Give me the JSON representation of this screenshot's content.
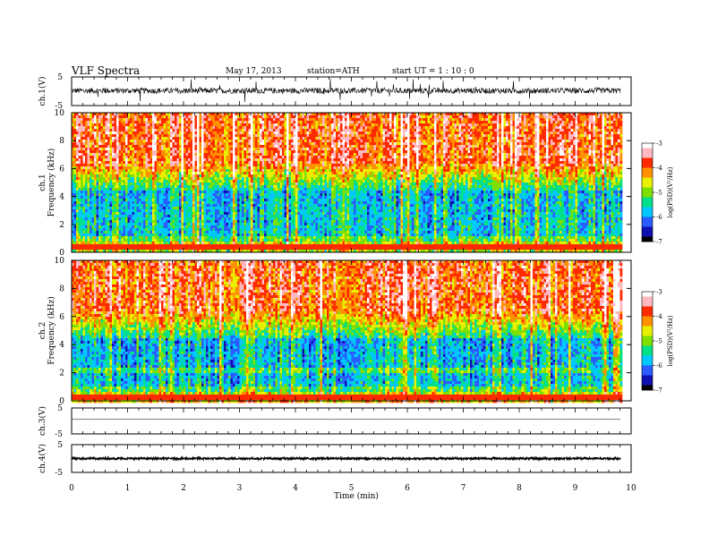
{
  "header": {
    "title": "VLF  Spectra",
    "date": "May 17, 2013",
    "station": "station=ATH",
    "start": "start  UT  =   1  : 10 : 0"
  },
  "colors": {
    "spectrogram_scale": [
      "#000000",
      "#1010b0",
      "#2a5cff",
      "#00c8ff",
      "#00e08a",
      "#7ee000",
      "#e8f000",
      "#ff9000",
      "#ff2a00",
      "#ffb8c0",
      "#ffffff"
    ]
  },
  "chart_data": [
    {
      "type": "line",
      "name": "ch1-waveform",
      "ylabel": "ch.1(V)",
      "ylim": [
        -5,
        5
      ],
      "yticks": [
        5,
        -5
      ],
      "xlim": [
        0,
        10
      ],
      "data_x_end": 9.8,
      "baseline": 0.2,
      "noise_amplitude": 1.0,
      "spike_amplitude": 3.5
    },
    {
      "type": "heatmap",
      "name": "ch1-spectrogram",
      "ylabel": "ch.1\nFrequency  (kHz)",
      "xlim": [
        0,
        10
      ],
      "ylim": [
        0,
        10
      ],
      "yticks": [
        0,
        2,
        4,
        6,
        8,
        10
      ],
      "data_x_end": 9.8,
      "colorbar": {
        "label": "log(PSD)(V²/Hz)",
        "range": [
          -7,
          -3
        ],
        "ticks": [
          -3,
          -4,
          -5,
          -6,
          -7
        ]
      }
    },
    {
      "type": "heatmap",
      "name": "ch2-spectrogram",
      "ylabel": "ch.2\nFrequency  (kHz)",
      "xlim": [
        0,
        10
      ],
      "ylim": [
        0,
        10
      ],
      "yticks": [
        0,
        2,
        4,
        6,
        8,
        10
      ],
      "data_x_end": 9.8,
      "colorbar": {
        "label": "log(PSD)(V²/Hz)",
        "range": [
          -7,
          -3
        ],
        "ticks": [
          -3,
          -4,
          -5,
          -6,
          -7
        ]
      }
    },
    {
      "type": "line",
      "name": "ch3-waveform",
      "ylabel": "ch.3(V)",
      "ylim": [
        -5,
        5
      ],
      "yticks": [
        5,
        -5
      ],
      "xlim": [
        0,
        10
      ],
      "data_x_end": 9.8,
      "baseline": 0.6,
      "noise_amplitude": 0.05
    },
    {
      "type": "line",
      "name": "ch4-waveform",
      "ylabel": "ch.4(V)",
      "ylim": [
        -5,
        5
      ],
      "yticks": [
        5,
        -5
      ],
      "xlim": [
        0,
        10
      ],
      "data_x_end": 9.8,
      "baseline": 0.0,
      "noise_amplitude": 0.35
    }
  ],
  "xaxis": {
    "label": "Time  (min)",
    "ticks": [
      0,
      1,
      2,
      3,
      4,
      5,
      6,
      7,
      8,
      9,
      10
    ]
  }
}
